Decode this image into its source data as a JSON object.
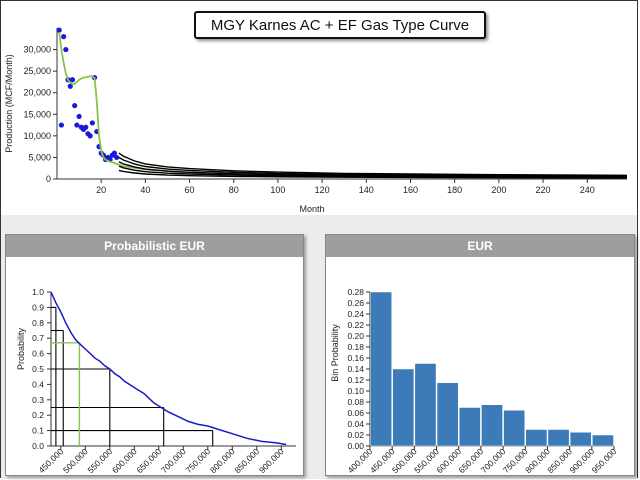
{
  "chart_data": [
    {
      "type": "scatter",
      "title": "MGY Karnes AC + EF Gas Type Curve",
      "xlabel": "Month",
      "ylabel": "Production (MCF/Month)",
      "xlim": [
        0,
        258
      ],
      "ylim": [
        0,
        35000
      ],
      "x_ticks": [
        "20",
        "40",
        "60",
        "80",
        "100",
        "120",
        "140",
        "160",
        "180",
        "200",
        "220",
        "240"
      ],
      "y_ticks": [
        "0",
        "5,000",
        "10,000",
        "15,000",
        "20,000",
        "25,000",
        "30,000"
      ],
      "grid": false,
      "series": [
        {
          "kind": "points",
          "color": "#1a1adc",
          "x": [
            1,
            2,
            3,
            4,
            5,
            6,
            7,
            8,
            9,
            10,
            11,
            12,
            13,
            14,
            15,
            16,
            17,
            18,
            19,
            20,
            21,
            22,
            23,
            24,
            25,
            26,
            27
          ],
          "y": [
            34500,
            12500,
            33000,
            30000,
            23000,
            21500,
            23000,
            17000,
            12500,
            14500,
            12000,
            11500,
            12000,
            10500,
            10000,
            13000,
            23500,
            11000,
            7500,
            6000,
            5500,
            4500,
            5000,
            4500,
            5500,
            6000,
            5000
          ]
        },
        {
          "kind": "fit",
          "color": "#8bc34a",
          "x": [
            1,
            2,
            3,
            4,
            5,
            6,
            7,
            8,
            9,
            10,
            11,
            12,
            13,
            14,
            15,
            16,
            17,
            18,
            19,
            20,
            21,
            22,
            23,
            24,
            25,
            26,
            27,
            30,
            40,
            60,
            100,
            150,
            200,
            258
          ],
          "y": [
            34000,
            30000,
            27000,
            24500,
            23000,
            22300,
            22000,
            22100,
            22500,
            23000,
            23300,
            23500,
            23600,
            23700,
            23800,
            23800,
            23400,
            18000,
            10000,
            6500,
            5000,
            4500,
            4200,
            4000,
            3900,
            3700,
            3500,
            3000,
            2200,
            1500,
            1000,
            700,
            500,
            400
          ]
        },
        {
          "kind": "forecast",
          "color": "#000000",
          "x": [
            28,
            30,
            35,
            40,
            50,
            60,
            80,
            100,
            130,
            160,
            200,
            258
          ],
          "y": [
            6000,
            5300,
            4200,
            3500,
            2800,
            2400,
            1900,
            1600,
            1300,
            1150,
            1000,
            850
          ]
        },
        {
          "kind": "forecast",
          "color": "#000000",
          "x": [
            28,
            30,
            35,
            40,
            50,
            60,
            80,
            100,
            130,
            160,
            200,
            258
          ],
          "y": [
            5000,
            4400,
            3500,
            2900,
            2300,
            2000,
            1550,
            1300,
            1050,
            920,
            800,
            680
          ]
        },
        {
          "kind": "forecast",
          "color": "#000000",
          "x": [
            28,
            30,
            35,
            40,
            50,
            60,
            80,
            100,
            130,
            160,
            200,
            258
          ],
          "y": [
            4000,
            3500,
            2800,
            2300,
            1800,
            1550,
            1200,
            1000,
            820,
            720,
            620,
            520
          ]
        },
        {
          "kind": "forecast",
          "color": "#000000",
          "x": [
            28,
            30,
            35,
            40,
            50,
            60,
            80,
            100,
            130,
            160,
            200,
            258
          ],
          "y": [
            3000,
            2600,
            2050,
            1700,
            1350,
            1150,
            900,
            750,
            610,
            540,
            460,
            390
          ]
        },
        {
          "kind": "forecast",
          "color": "#000000",
          "x": [
            28,
            30,
            35,
            40,
            50,
            60,
            80,
            100,
            130,
            160,
            200,
            258
          ],
          "y": [
            2000,
            1750,
            1400,
            1150,
            900,
            770,
            600,
            500,
            410,
            360,
            310,
            260
          ]
        }
      ]
    },
    {
      "type": "line",
      "title": "Probabilistic EUR",
      "xlabel": "",
      "ylabel": "Probability",
      "xlim": [
        430000,
        930000
      ],
      "ylim": [
        0,
        1.0
      ],
      "x_ticks": [
        "450,000",
        "500,000",
        "550,000",
        "600,000",
        "650,000",
        "700,000",
        "750,000",
        "800,000",
        "850,000",
        "900,000"
      ],
      "y_ticks": [
        "0.0",
        "0.1",
        "0.2",
        "0.3",
        "0.4",
        "0.5",
        "0.6",
        "0.7",
        "0.8",
        "0.9",
        "1.0"
      ],
      "line_color": "#1a1acc",
      "x": [
        430000,
        440000,
        450000,
        460000,
        470000,
        480000,
        490000,
        500000,
        510000,
        520000,
        530000,
        540000,
        550000,
        560000,
        570000,
        580000,
        590000,
        600000,
        610000,
        620000,
        630000,
        640000,
        650000,
        670000,
        690000,
        710000,
        730000,
        750000,
        770000,
        800000,
        830000,
        860000,
        890000,
        910000
      ],
      "y": [
        1.0,
        0.93,
        0.87,
        0.8,
        0.74,
        0.69,
        0.66,
        0.63,
        0.6,
        0.57,
        0.55,
        0.52,
        0.5,
        0.47,
        0.45,
        0.42,
        0.4,
        0.38,
        0.36,
        0.34,
        0.31,
        0.28,
        0.26,
        0.22,
        0.19,
        0.16,
        0.14,
        0.13,
        0.11,
        0.08,
        0.05,
        0.03,
        0.02,
        0.01
      ],
      "guides_black": [
        {
          "x": 440000,
          "y": 0.9
        },
        {
          "x": 455000,
          "y": 0.75
        },
        {
          "x": 550000,
          "y": 0.5
        },
        {
          "x": 660000,
          "y": 0.25
        },
        {
          "x": 760000,
          "y": 0.1
        }
      ],
      "guide_green": {
        "x": 488000,
        "y": 0.67,
        "color": "#8bc34a"
      }
    },
    {
      "type": "bar",
      "title": "EUR",
      "xlabel": "",
      "ylabel": "Bin Probability",
      "ylim": [
        0,
        0.28
      ],
      "x_ticks": [
        "400,000",
        "450,000",
        "500,000",
        "550,000",
        "600,000",
        "650,000",
        "700,000",
        "750,000",
        "800,000",
        "850,000",
        "900,000",
        "950,000"
      ],
      "y_ticks": [
        "0.00",
        "0.02",
        "0.04",
        "0.06",
        "0.08",
        "0.10",
        "0.12",
        "0.14",
        "0.16",
        "0.18",
        "0.20",
        "0.22",
        "0.24",
        "0.26",
        "0.28"
      ],
      "bar_color": "#3d7ab8",
      "bins": [
        [
          400000,
          450000
        ],
        [
          450000,
          500000
        ],
        [
          500000,
          550000
        ],
        [
          550000,
          600000
        ],
        [
          600000,
          650000
        ],
        [
          650000,
          700000
        ],
        [
          700000,
          750000
        ],
        [
          750000,
          800000
        ],
        [
          800000,
          850000
        ],
        [
          850000,
          900000
        ],
        [
          900000,
          950000
        ]
      ],
      "values": [
        0.28,
        0.14,
        0.15,
        0.115,
        0.07,
        0.075,
        0.065,
        0.03,
        0.03,
        0.025,
        0.02
      ]
    }
  ]
}
